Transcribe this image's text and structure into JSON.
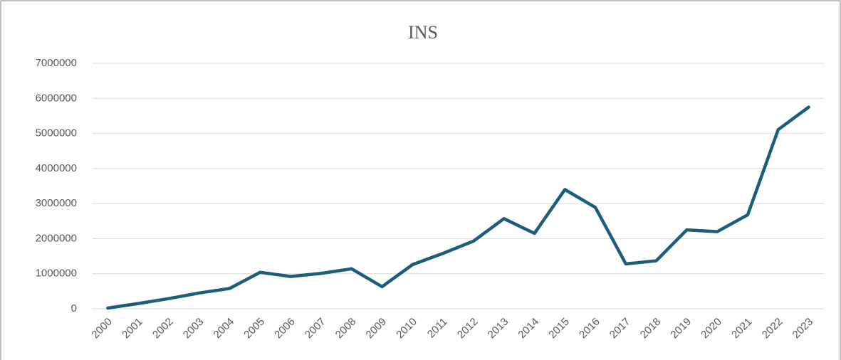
{
  "chart_data": {
    "type": "line",
    "title": "INS",
    "categories": [
      "2000",
      "2001",
      "2002",
      "2003",
      "2004",
      "2005",
      "2006",
      "2007",
      "2008",
      "2009",
      "2010",
      "2011",
      "2012",
      "2013",
      "2014",
      "2015",
      "2016",
      "2017",
      "2018",
      "2019",
      "2020",
      "2021",
      "2022",
      "2023"
    ],
    "values": [
      20000,
      150000,
      290000,
      450000,
      580000,
      1040000,
      920000,
      1010000,
      1140000,
      630000,
      1260000,
      1580000,
      1930000,
      2570000,
      2150000,
      3400000,
      2890000,
      1280000,
      1370000,
      2250000,
      2200000,
      2680000,
      5110000,
      5750000
    ],
    "color": "#1b5e7b",
    "ylim": [
      0,
      7000000
    ],
    "yticks": [
      0,
      1000000,
      2000000,
      3000000,
      4000000,
      5000000,
      6000000,
      7000000
    ],
    "grid": true
  }
}
